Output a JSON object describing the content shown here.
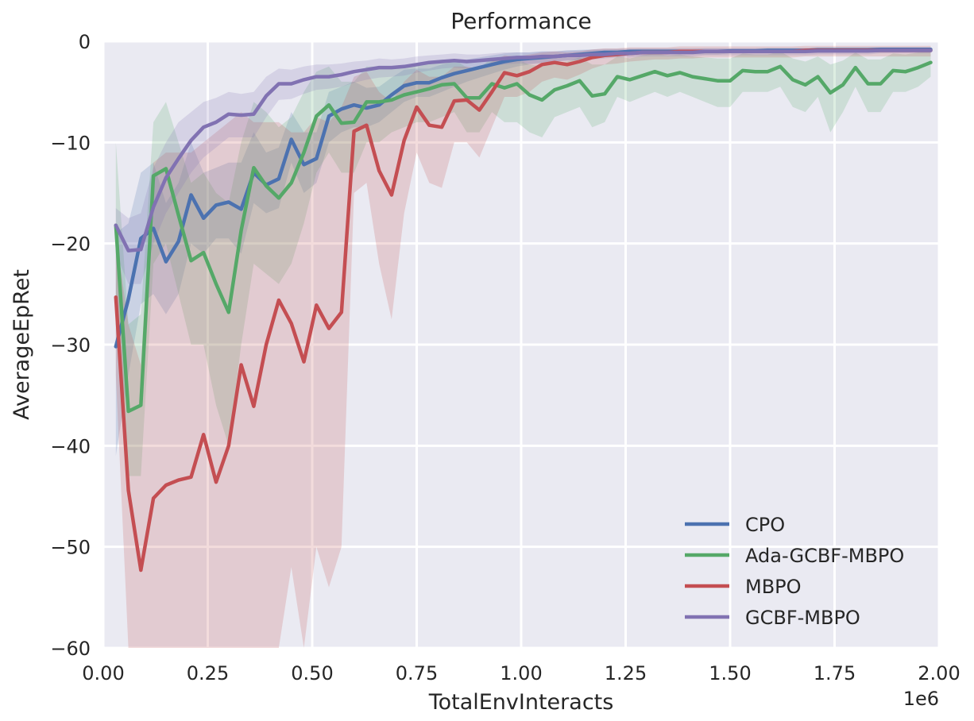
{
  "chart_data": {
    "type": "line",
    "title": "Performance",
    "xlabel": "TotalEnvInteracts",
    "ylabel": "AverageEpRet",
    "x_exponent_label": "1e6",
    "xlim": [
      0,
      2.0
    ],
    "ylim": [
      -60,
      0
    ],
    "x_ticks": [
      0,
      0.25,
      0.5,
      0.75,
      1.0,
      1.25,
      1.5,
      1.75,
      2.0
    ],
    "x_tick_labels": [
      "0.00",
      "0.25",
      "0.50",
      "0.75",
      "1.00",
      "1.25",
      "1.50",
      "1.75",
      "2.00"
    ],
    "y_ticks": [
      0,
      -10,
      -20,
      -30,
      -40,
      -50,
      -60
    ],
    "y_tick_labels": [
      "0",
      "−10",
      "−20",
      "−30",
      "−40",
      "−50",
      "−60"
    ],
    "grid": true,
    "background": "#eaeaf2",
    "legend_position": "lower-right",
    "x": [
      0.03,
      0.06,
      0.09,
      0.12,
      0.15,
      0.18,
      0.21,
      0.24,
      0.27,
      0.3,
      0.33,
      0.36,
      0.39,
      0.42,
      0.45,
      0.48,
      0.51,
      0.54,
      0.57,
      0.6,
      0.63,
      0.66,
      0.69,
      0.72,
      0.75,
      0.78,
      0.81,
      0.84,
      0.87,
      0.9,
      0.93,
      0.96,
      0.99,
      1.02,
      1.05,
      1.08,
      1.11,
      1.14,
      1.17,
      1.2,
      1.23,
      1.26,
      1.29,
      1.32,
      1.35,
      1.38,
      1.41,
      1.44,
      1.47,
      1.5,
      1.53,
      1.56,
      1.59,
      1.62,
      1.65,
      1.68,
      1.71,
      1.74,
      1.77,
      1.8,
      1.83,
      1.86,
      1.89,
      1.92,
      1.95,
      1.98
    ],
    "series": [
      {
        "name": "CPO",
        "color": "#4c72b0",
        "mean": [
          -30.2,
          -25.5,
          -19.5,
          -18.5,
          -21.8,
          -19.8,
          -15.2,
          -17.5,
          -16.2,
          -15.9,
          -16.6,
          -13.0,
          -14.2,
          -13.6,
          -9.7,
          -12.2,
          -11.6,
          -7.4,
          -6.7,
          -6.3,
          -6.6,
          -6.3,
          -5.3,
          -4.4,
          -4.1,
          -4.1,
          -3.6,
          -3.2,
          -2.9,
          -2.6,
          -2.3,
          -2.0,
          -1.8,
          -1.7,
          -1.6,
          -1.5,
          -1.4,
          -1.3,
          -1.2,
          -1.1,
          -1.1,
          -1.0,
          -1.0,
          -1.0,
          -1.0,
          -1.0,
          -1.0,
          -1.0,
          -1.0,
          -0.95,
          -0.95,
          -0.95,
          -0.9,
          -0.9,
          -0.9,
          -0.9,
          -0.85,
          -0.85,
          -0.85,
          -0.85,
          -0.85,
          -0.8,
          -0.8,
          -0.8,
          -0.8,
          -0.8
        ],
        "lower": [
          -41,
          -33,
          -26,
          -25,
          -27,
          -25,
          -20,
          -21,
          -19.5,
          -19.5,
          -21,
          -16,
          -17,
          -16.5,
          -12,
          -15,
          -14,
          -10,
          -9,
          -8.5,
          -8.5,
          -8,
          -7,
          -6,
          -5.5,
          -5.5,
          -5,
          -4.5,
          -4,
          -3.6,
          -3.2,
          -2.8,
          -2.5,
          -2.3,
          -2.2,
          -2.0,
          -1.9,
          -1.8,
          -1.6,
          -1.5,
          -1.5,
          -1.4,
          -1.4,
          -1.3,
          -1.3,
          -1.3,
          -1.3,
          -1.3,
          -1.3,
          -1.2,
          -1.2,
          -1.2,
          -1.2,
          -1.2,
          -1.2,
          -1.2,
          -1.1,
          -1.1,
          -1.1,
          -1.1,
          -1.1,
          -1.0,
          -1.0,
          -1.0,
          -1.0,
          -1.0
        ],
        "upper": [
          -19,
          -18,
          -13,
          -12,
          -16,
          -14,
          -10,
          -13,
          -12.5,
          -12,
          -12,
          -9,
          -11,
          -10.5,
          -7,
          -9,
          -9,
          -5,
          -4.5,
          -4,
          -4.6,
          -4.5,
          -3.6,
          -2.8,
          -2.7,
          -2.7,
          -2.3,
          -2.0,
          -1.8,
          -1.6,
          -1.4,
          -1.2,
          -1.1,
          -1.1,
          -1.0,
          -1.0,
          -0.9,
          -0.85,
          -0.8,
          -0.75,
          -0.75,
          -0.7,
          -0.7,
          -0.7,
          -0.7,
          -0.7,
          -0.7,
          -0.7,
          -0.7,
          -0.7,
          -0.7,
          -0.7,
          -0.65,
          -0.65,
          -0.65,
          -0.65,
          -0.6,
          -0.6,
          -0.6,
          -0.6,
          -0.6,
          -0.6,
          -0.6,
          -0.6,
          -0.6,
          -0.6
        ]
      },
      {
        "name": "Ada-GCBF-MBPO",
        "color": "#55a868",
        "mean": [
          -18.2,
          -36.6,
          -36.0,
          -13.3,
          -12.6,
          -17.2,
          -21.7,
          -20.9,
          -24.0,
          -26.8,
          -18.7,
          -12.5,
          -14.3,
          -15.5,
          -14.0,
          -11.0,
          -7.4,
          -6.3,
          -8.1,
          -8.0,
          -6.0,
          -6.0,
          -5.8,
          -5.3,
          -5.0,
          -4.7,
          -4.3,
          -4.2,
          -5.6,
          -5.6,
          -4.2,
          -4.6,
          -4.2,
          -5.3,
          -5.8,
          -4.8,
          -4.4,
          -3.9,
          -5.4,
          -5.2,
          -3.5,
          -3.8,
          -3.4,
          -3.0,
          -3.4,
          -3.1,
          -3.5,
          -3.7,
          -3.9,
          -3.9,
          -2.9,
          -3.0,
          -3.0,
          -2.5,
          -3.8,
          -4.3,
          -3.5,
          -5.1,
          -4.3,
          -2.6,
          -4.2,
          -4.2,
          -2.9,
          -3.0,
          -2.6,
          -2.1
        ],
        "lower": [
          -28,
          -43,
          -43,
          -22,
          -20,
          -25,
          -30,
          -30,
          -36,
          -40,
          -30,
          -22,
          -23,
          -24,
          -22,
          -18,
          -13,
          -11,
          -13,
          -13,
          -10,
          -10,
          -9,
          -8.5,
          -8,
          -8,
          -7.5,
          -7,
          -9,
          -9,
          -7,
          -8,
          -8,
          -9,
          -9.5,
          -7.5,
          -7,
          -6.5,
          -8.5,
          -8,
          -5.5,
          -6,
          -5.5,
          -5,
          -5.5,
          -5,
          -5.5,
          -6,
          -6.5,
          -6.5,
          -5,
          -5,
          -5,
          -4.5,
          -6.5,
          -7,
          -5.5,
          -9,
          -7,
          -4.5,
          -7,
          -7,
          -5,
          -5,
          -4.5,
          -3.5
        ],
        "upper": [
          -10,
          -28,
          -27,
          -8,
          -6,
          -10,
          -14,
          -13,
          -15,
          -16,
          -10,
          -6,
          -7,
          -8.5,
          -7.5,
          -5,
          -3,
          -2.5,
          -4,
          -4,
          -2.5,
          -2.5,
          -2.6,
          -2.5,
          -2.2,
          -2,
          -1.8,
          -1.8,
          -2.6,
          -2.6,
          -1.7,
          -2,
          -1.8,
          -2.3,
          -2.5,
          -2.2,
          -2,
          -1.6,
          -2.3,
          -2.3,
          -1.5,
          -1.7,
          -1.4,
          -1.2,
          -1.4,
          -1.3,
          -1.5,
          -1.6,
          -1.7,
          -1.7,
          -1.2,
          -1.3,
          -1.3,
          -1,
          -1.7,
          -2,
          -1.5,
          -2.3,
          -1.9,
          -1.1,
          -1.8,
          -1.8,
          -1.2,
          -1.3,
          -1.1,
          -0.9
        ]
      },
      {
        "name": "MBPO",
        "color": "#c44e52",
        "mean": [
          -25.3,
          -44.4,
          -52.3,
          -45.2,
          -43.9,
          -43.4,
          -43.1,
          -38.9,
          -43.6,
          -40.0,
          -32.0,
          -36.1,
          -30.0,
          -25.6,
          -27.9,
          -31.7,
          -26.1,
          -28.4,
          -26.8,
          -8.9,
          -8.3,
          -12.8,
          -15.2,
          -9.8,
          -6.5,
          -8.3,
          -8.5,
          -5.9,
          -5.8,
          -6.8,
          -5.0,
          -3.1,
          -3.4,
          -3.0,
          -2.3,
          -2.1,
          -2.3,
          -2.0,
          -1.6,
          -1.4,
          -1.3,
          -1.2,
          -1.1,
          -1.1,
          -1.1,
          -1.0,
          -1.0,
          -1.0,
          -1.0,
          -1.0,
          -1.0,
          -1.0,
          -1.0,
          -1.0,
          -1.0,
          -0.9,
          -0.9,
          -0.9,
          -0.9,
          -0.9,
          -0.9,
          -0.9,
          -0.9,
          -0.9,
          -0.9,
          -0.9
        ],
        "lower": [
          -33,
          -60,
          -60,
          -60,
          -60,
          -60,
          -60,
          -60,
          -60,
          -60,
          -60,
          -60,
          -60,
          -60,
          -52,
          -60,
          -50,
          -54,
          -50,
          -15,
          -14,
          -22,
          -27.5,
          -17,
          -11,
          -14,
          -14.5,
          -10,
          -10,
          -11.5,
          -8.5,
          -5.5,
          -5.5,
          -5,
          -4,
          -3.6,
          -3.8,
          -3.3,
          -2.7,
          -2.3,
          -2.2,
          -2,
          -1.9,
          -1.8,
          -1.8,
          -1.7,
          -1.7,
          -1.6,
          -1.6,
          -1.6,
          -1.6,
          -1.6,
          -1.6,
          -1.6,
          -1.6,
          -1.5,
          -1.5,
          -1.5,
          -1.5,
          -1.5,
          -1.5,
          -1.5,
          -1.5,
          -1.5,
          -1.5,
          -1.5
        ],
        "upper": [
          -19,
          -28,
          -32,
          -12,
          -11,
          -11,
          -11,
          -10,
          -9,
          -8,
          -7,
          -8,
          -8,
          -8,
          -9,
          -9,
          -7.5,
          -8,
          -6.5,
          -3.5,
          -3,
          -5,
          -6,
          -4,
          -2.8,
          -3.5,
          -3.5,
          -2.5,
          -2.5,
          -2.8,
          -2,
          -1.4,
          -1.5,
          -1.3,
          -1.1,
          -1,
          -1.1,
          -1,
          -0.8,
          -0.7,
          -0.7,
          -0.6,
          -0.6,
          -0.6,
          -0.6,
          -0.5,
          -0.5,
          -0.5,
          -0.5,
          -0.5,
          -0.5,
          -0.5,
          -0.5,
          -0.5,
          -0.5,
          -0.45,
          -0.45,
          -0.45,
          -0.45,
          -0.45,
          -0.45,
          -0.45,
          -0.45,
          -0.45,
          -0.45,
          -0.45
        ]
      },
      {
        "name": "GCBF-MBPO",
        "color": "#8172b2",
        "mean": [
          -18.2,
          -20.7,
          -20.6,
          -16.4,
          -13.5,
          -11.6,
          -9.8,
          -8.5,
          -8.0,
          -7.2,
          -7.3,
          -7.2,
          -5.4,
          -4.2,
          -4.2,
          -3.8,
          -3.5,
          -3.5,
          -3.3,
          -3.0,
          -2.8,
          -2.6,
          -2.6,
          -2.5,
          -2.3,
          -2.1,
          -2.0,
          -1.9,
          -2.0,
          -1.9,
          -1.8,
          -1.7,
          -1.6,
          -1.6,
          -1.5,
          -1.5,
          -1.4,
          -1.4,
          -1.3,
          -1.3,
          -1.2,
          -1.2,
          -1.1,
          -1.1,
          -1.1,
          -1.1,
          -1.1,
          -1.0,
          -1.0,
          -1.0,
          -1.0,
          -1.0,
          -1.0,
          -1.0,
          -1.0,
          -1.0,
          -0.95,
          -0.95,
          -0.95,
          -0.95,
          -0.95,
          -0.9,
          -0.9,
          -0.9,
          -0.9,
          -0.9
        ],
        "lower": [
          -21,
          -24,
          -24,
          -20,
          -17,
          -15,
          -13,
          -11.5,
          -10.5,
          -9.5,
          -9.5,
          -9.5,
          -7.5,
          -5.8,
          -5.7,
          -5.2,
          -4.8,
          -4.7,
          -4.5,
          -4.1,
          -3.8,
          -3.6,
          -3.5,
          -3.4,
          -3.1,
          -2.9,
          -2.7,
          -2.6,
          -2.7,
          -2.6,
          -2.4,
          -2.3,
          -2.2,
          -2.2,
          -2.1,
          -2,
          -1.9,
          -1.9,
          -1.8,
          -1.7,
          -1.6,
          -1.6,
          -1.5,
          -1.5,
          -1.5,
          -1.5,
          -1.5,
          -1.4,
          -1.4,
          -1.4,
          -1.4,
          -1.4,
          -1.4,
          -1.4,
          -1.4,
          -1.4,
          -1.3,
          -1.3,
          -1.3,
          -1.3,
          -1.3,
          -1.2,
          -1.2,
          -1.2,
          -1.2,
          -1.2
        ],
        "upper": [
          -16.5,
          -17.5,
          -17,
          -12.5,
          -10,
          -8,
          -7,
          -6,
          -5.6,
          -5,
          -5.2,
          -5,
          -3.5,
          -2.7,
          -2.8,
          -2.5,
          -2.3,
          -2.3,
          -2.2,
          -2,
          -1.9,
          -1.7,
          -1.8,
          -1.7,
          -1.5,
          -1.4,
          -1.3,
          -1.2,
          -1.3,
          -1.3,
          -1.2,
          -1.1,
          -1.1,
          -1.1,
          -1,
          -1,
          -0.9,
          -0.9,
          -0.85,
          -0.85,
          -0.8,
          -0.8,
          -0.75,
          -0.75,
          -0.75,
          -0.75,
          -0.75,
          -0.7,
          -0.7,
          -0.7,
          -0.7,
          -0.7,
          -0.7,
          -0.7,
          -0.7,
          -0.7,
          -0.65,
          -0.65,
          -0.65,
          -0.65,
          -0.65,
          -0.6,
          -0.6,
          -0.6,
          -0.6,
          -0.6
        ]
      }
    ]
  }
}
